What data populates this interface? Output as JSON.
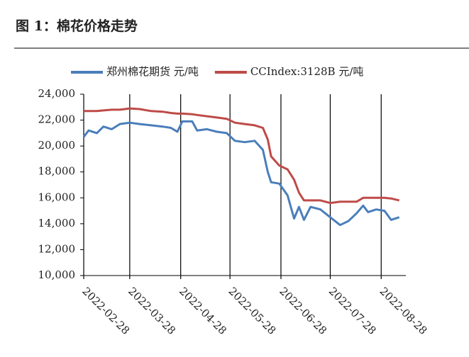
{
  "chart_data": {
    "type": "line",
    "title": "图 1：棉花价格走势",
    "x": [
      "2022-02-28",
      "2022-03-03",
      "2022-03-08",
      "2022-03-12",
      "2022-03-17",
      "2022-03-22",
      "2022-03-28",
      "2022-04-03",
      "2022-04-10",
      "2022-04-17",
      "2022-04-22",
      "2022-04-26",
      "2022-04-29",
      "2022-05-05",
      "2022-05-08",
      "2022-05-14",
      "2022-05-20",
      "2022-05-26",
      "2022-05-31",
      "2022-06-06",
      "2022-06-12",
      "2022-06-17",
      "2022-06-20",
      "2022-06-22",
      "2022-06-27",
      "2022-07-02",
      "2022-07-06",
      "2022-07-09",
      "2022-07-12",
      "2022-07-16",
      "2022-07-22",
      "2022-07-28",
      "2022-08-03",
      "2022-08-08",
      "2022-08-13",
      "2022-08-17",
      "2022-08-20",
      "2022-08-25",
      "2022-08-30",
      "2022-09-03",
      "2022-09-08"
    ],
    "series": [
      {
        "name": "郑州棉花期货 元/吨",
        "color": "#4a7ebb",
        "values": [
          20700,
          21200,
          21000,
          21500,
          21300,
          21700,
          21800,
          21700,
          21600,
          21500,
          21400,
          21100,
          21900,
          21900,
          21200,
          21300,
          21100,
          21000,
          20400,
          20300,
          20400,
          19700,
          18000,
          17200,
          17100,
          16200,
          14400,
          15300,
          14300,
          15300,
          15100,
          14500,
          13900,
          14200,
          14800,
          15400,
          14900,
          15100,
          15000,
          14300,
          14500
        ]
      },
      {
        "name": "CCIndex:3128B 元/吨",
        "color": "#be4b48",
        "values": [
          22700,
          22700,
          22700,
          22750,
          22800,
          22800,
          22900,
          22850,
          22700,
          22650,
          22550,
          22500,
          22500,
          22450,
          22400,
          22300,
          22200,
          22100,
          21800,
          21700,
          21600,
          21400,
          20500,
          19200,
          18500,
          18200,
          17400,
          16400,
          15800,
          15800,
          15800,
          15600,
          15700,
          15700,
          15700,
          16000,
          16000,
          16000,
          16000,
          15950,
          15800
        ]
      }
    ],
    "xlim": [
      "2022-02-28",
      "2022-09-12"
    ],
    "xticks": [
      "2022-02-28",
      "2022-03-28",
      "2022-04-28",
      "2022-05-28",
      "2022-06-28",
      "2022-07-28",
      "2022-08-28"
    ],
    "ylim": [
      10000,
      24000
    ],
    "yticks": [
      {
        "value": 10000,
        "label": "10,000"
      },
      {
        "value": 12000,
        "label": "12,000"
      },
      {
        "value": 14000,
        "label": "14,000"
      },
      {
        "value": 16000,
        "label": "16,000"
      },
      {
        "value": 18000,
        "label": "18,000"
      },
      {
        "value": 20000,
        "label": "20,000"
      },
      {
        "value": 22000,
        "label": "22,000"
      },
      {
        "value": 24000,
        "label": "24,000"
      }
    ],
    "grid": true,
    "legend": "top"
  }
}
